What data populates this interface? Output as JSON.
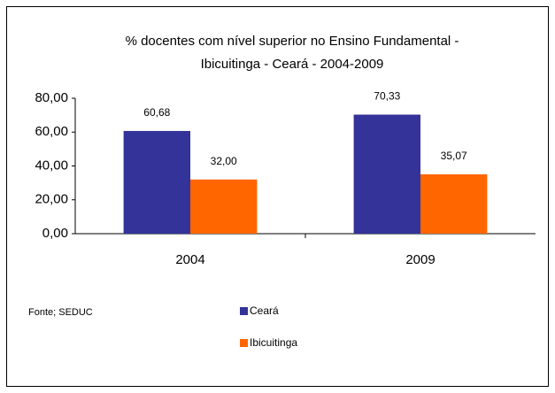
{
  "chart_data": {
    "type": "bar",
    "title": [
      "% docentes com nível  superior no Ensino Fundamental  -",
      "Ibicuitinga -  Ceará - 2004-2009"
    ],
    "categories": [
      "2004",
      "2009"
    ],
    "series": [
      {
        "name": "Ceará",
        "color": "#333399",
        "values": [
          60.68,
          70.33
        ],
        "value_labels": [
          "60,68",
          "70,33"
        ]
      },
      {
        "name": "Ibicuitinga",
        "color": "#ff6600",
        "values": [
          32.0,
          35.07
        ],
        "value_labels": [
          "32,00",
          "35,07"
        ]
      }
    ],
    "ylim": [
      0,
      80
    ],
    "yticks": [
      {
        "value": 0,
        "label": "0,00"
      },
      {
        "value": 20,
        "label": "20,00"
      },
      {
        "value": 40,
        "label": "40,00"
      },
      {
        "value": 60,
        "label": "60,00"
      },
      {
        "value": 80,
        "label": "80,00"
      }
    ],
    "grid": false,
    "legend": "bottom-right",
    "source": "Fonte; SEDUC"
  }
}
